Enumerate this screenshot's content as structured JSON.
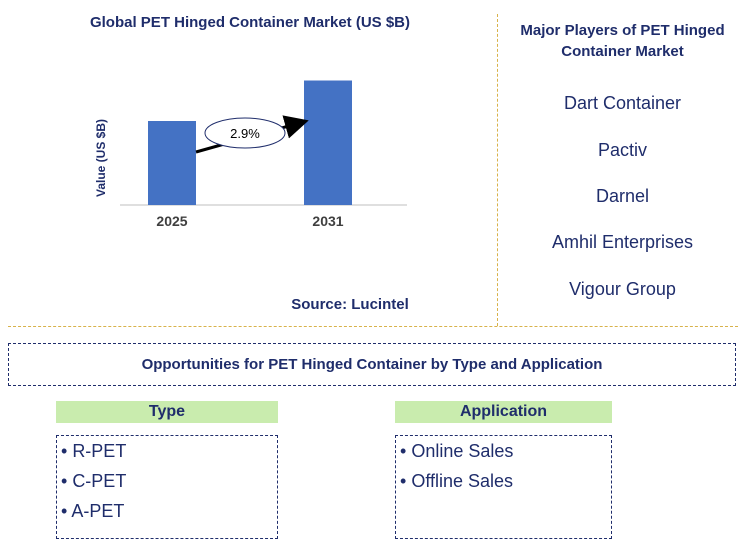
{
  "chart_data": {
    "type": "bar",
    "title": "Global PET Hinged Container Market (US $B)",
    "categories": [
      "2025",
      "2031"
    ],
    "values": [
      0.56,
      0.83
    ],
    "ylabel": "Value (US $B)",
    "xlabel": "",
    "ylim": [
      0,
      1
    ],
    "annotation": "2.9%",
    "bar_color": "#4472c4",
    "grid": false
  },
  "source": "Source: Lucintel",
  "players": {
    "title": "Major Players of PET Hinged Container Market",
    "items": [
      "Dart Container",
      "Pactiv",
      "Darnel",
      "Amhil Enterprises",
      "Vigour Group"
    ]
  },
  "opportunities": {
    "title": "Opportunities for PET Hinged Container by Type and Application",
    "type": {
      "heading": "Type",
      "items": [
        "R-PET",
        "C-PET",
        "A-PET"
      ]
    },
    "application": {
      "heading": "Application",
      "items": [
        "Online Sales",
        "Offline Sales"
      ]
    }
  },
  "colors": {
    "text": "#1f2d6b",
    "header_fill": "#c9ecae",
    "divider": "#d8b24a"
  }
}
